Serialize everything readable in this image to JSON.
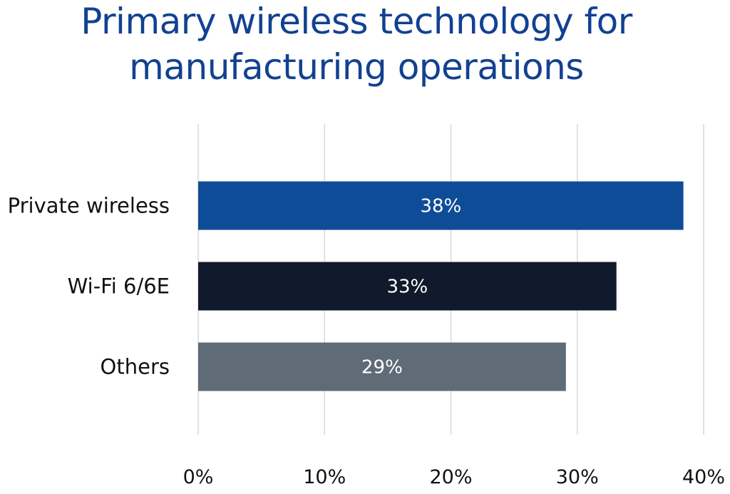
{
  "chart_data": {
    "type": "bar",
    "orientation": "horizontal",
    "title_lines": [
      "Primary wireless technology for",
      "manufacturing operations"
    ],
    "categories": [
      "Private wireless",
      "Wi-Fi 6/6E",
      "Others"
    ],
    "values": [
      38.4,
      33.1,
      29.1
    ],
    "value_labels": [
      "38%",
      "33%",
      "29%"
    ],
    "bar_colors": [
      "#0f4c97",
      "#101a2c",
      "#5f6b77"
    ],
    "xlim": [
      0,
      40
    ],
    "xticks": [
      0,
      10,
      20,
      30,
      40
    ],
    "xtick_labels": [
      "0%",
      "10%",
      "20%",
      "30%",
      "40%"
    ],
    "grid": true,
    "legend": "none"
  }
}
